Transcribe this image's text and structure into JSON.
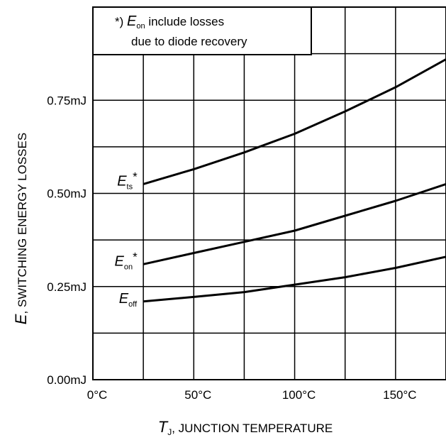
{
  "chart_data": {
    "type": "line",
    "xlabel": {
      "var": "T",
      "sub": "J",
      "text": ", JUNCTION TEMPERATURE"
    },
    "ylabel": {
      "var": "E",
      "text": ", SWITCHING ENERGY LOSSES"
    },
    "xlim": [
      0,
      175
    ],
    "ylim": [
      0,
      1.0
    ],
    "xticks": [
      {
        "value": 0,
        "label": "0°C"
      },
      {
        "value": 50,
        "label": "50°C"
      },
      {
        "value": 100,
        "label": "100°C"
      },
      {
        "value": 150,
        "label": "150°C"
      }
    ],
    "yticks": [
      {
        "value": 0,
        "label": "0.00mJ"
      },
      {
        "value": 0.25,
        "label": "0.25mJ"
      },
      {
        "value": 0.5,
        "label": "0.50mJ"
      },
      {
        "value": 0.75,
        "label": "0.75mJ"
      }
    ],
    "grid": true,
    "grid_x_step": 25,
    "grid_y_step": 0.125,
    "note": {
      "prefix": "*) ",
      "var": "E",
      "sub": "on",
      "line1": " include losses",
      "line2": "due to diode recovery"
    },
    "series": [
      {
        "label": {
          "var": "E",
          "sub": "ts",
          "suffix": "*"
        },
        "x": [
          25,
          50,
          75,
          100,
          125,
          150,
          175
        ],
        "y": [
          0.525,
          0.565,
          0.61,
          0.66,
          0.72,
          0.785,
          0.86
        ]
      },
      {
        "label": {
          "var": "E",
          "sub": "on",
          "suffix": "*"
        },
        "x": [
          25,
          50,
          75,
          100,
          125,
          150,
          175
        ],
        "y": [
          0.31,
          0.34,
          0.37,
          0.4,
          0.44,
          0.48,
          0.525
        ]
      },
      {
        "label": {
          "var": "E",
          "sub": "off",
          "suffix": ""
        },
        "x": [
          25,
          50,
          75,
          100,
          125,
          150,
          175
        ],
        "y": [
          0.21,
          0.222,
          0.235,
          0.255,
          0.275,
          0.3,
          0.33
        ]
      }
    ]
  }
}
